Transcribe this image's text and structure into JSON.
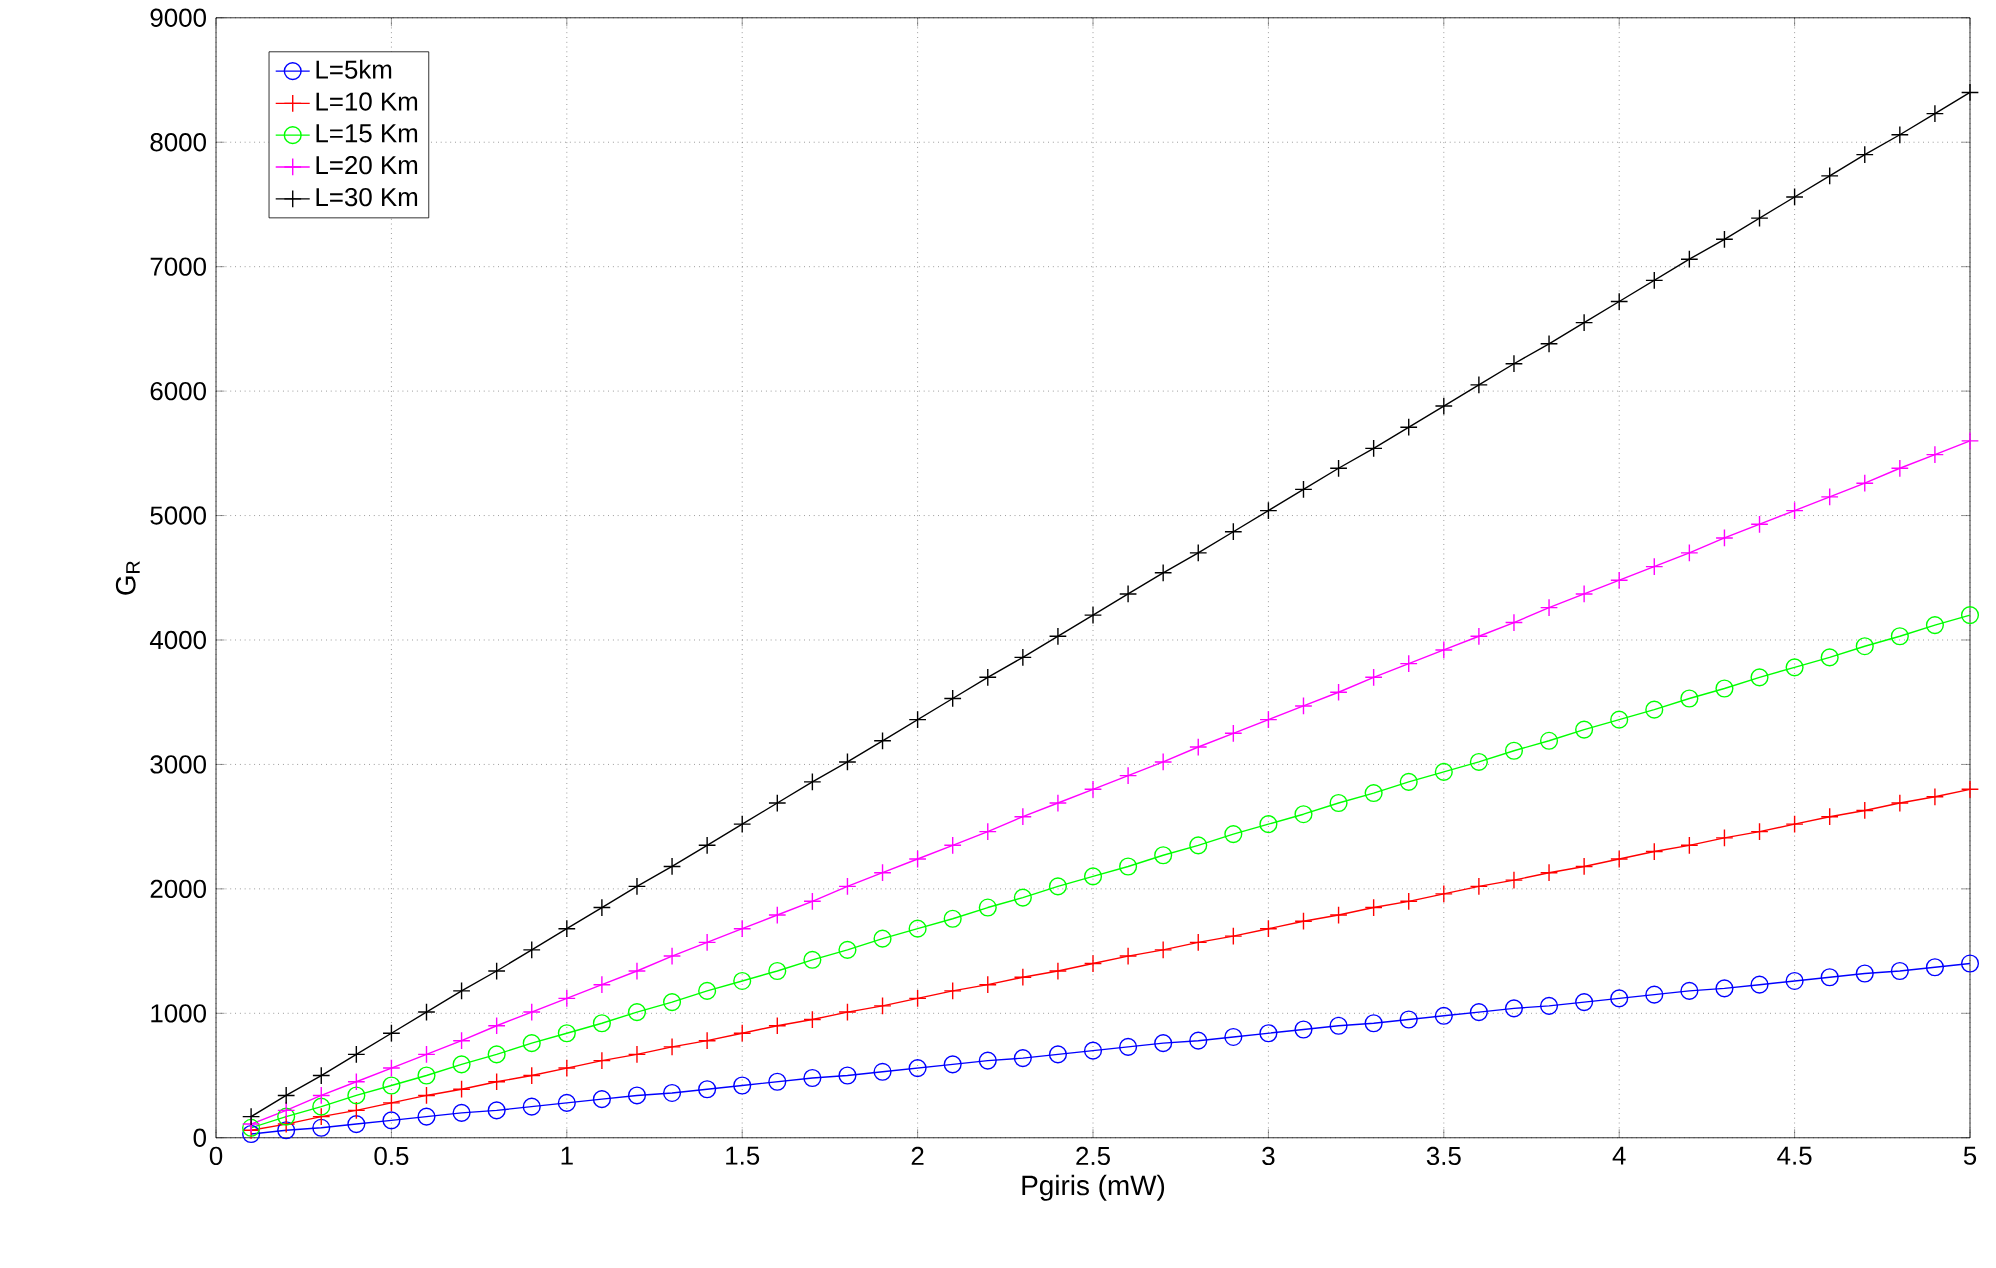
{
  "chart_data": {
    "type": "line",
    "xlabel": "Pgiris (mW)",
    "ylabel": "G$_{R}$",
    "x": [
      0.1,
      0.2,
      0.3,
      0.4,
      0.5,
      0.6,
      0.7,
      0.8,
      0.9,
      1.0,
      1.1,
      1.2,
      1.3,
      1.4,
      1.5,
      1.6,
      1.7,
      1.8,
      1.9,
      2.0,
      2.1,
      2.2,
      2.3,
      2.4,
      2.5,
      2.6,
      2.7,
      2.8,
      2.9,
      3.0,
      3.1,
      3.2,
      3.3,
      3.4,
      3.5,
      3.6,
      3.7,
      3.8,
      3.9,
      4.0,
      4.1,
      4.2,
      4.3,
      4.4,
      4.5,
      4.6,
      4.7,
      4.8,
      4.9,
      5.0
    ],
    "series": [
      {
        "name": "L=5km",
        "color": "#0000ff",
        "marker": "circle",
        "values": [
          30,
          60,
          80,
          110,
          140,
          170,
          200,
          220,
          250,
          280,
          310,
          340,
          360,
          390,
          420,
          450,
          480,
          500,
          530,
          560,
          590,
          620,
          640,
          670,
          700,
          730,
          760,
          780,
          810,
          840,
          870,
          900,
          920,
          950,
          980,
          1010,
          1040,
          1060,
          1090,
          1120,
          1150,
          1180,
          1200,
          1230,
          1260,
          1290,
          1320,
          1340,
          1370,
          1400
        ]
      },
      {
        "name": "L=10 Km",
        "color": "#ff0000",
        "marker": "cross",
        "values": [
          60,
          110,
          170,
          220,
          280,
          340,
          390,
          450,
          500,
          560,
          620,
          670,
          730,
          780,
          840,
          900,
          950,
          1010,
          1060,
          1120,
          1180,
          1230,
          1290,
          1340,
          1400,
          1460,
          1510,
          1570,
          1620,
          1680,
          1740,
          1790,
          1850,
          1900,
          1960,
          2020,
          2070,
          2130,
          2180,
          2240,
          2300,
          2350,
          2410,
          2460,
          2520,
          2580,
          2630,
          2690,
          2740,
          2800
        ]
      },
      {
        "name": "L=15 Km",
        "color": "#00ff00",
        "marker": "circle",
        "values": [
          80,
          170,
          250,
          340,
          420,
          500,
          590,
          670,
          760,
          840,
          920,
          1010,
          1090,
          1180,
          1260,
          1340,
          1430,
          1510,
          1600,
          1680,
          1760,
          1850,
          1930,
          2020,
          2100,
          2180,
          2270,
          2350,
          2440,
          2520,
          2600,
          2690,
          2770,
          2860,
          2940,
          3020,
          3110,
          3190,
          3280,
          3360,
          3440,
          3530,
          3610,
          3700,
          3780,
          3860,
          3950,
          4030,
          4120,
          4200
        ]
      },
      {
        "name": "L=20 Km",
        "color": "#ff00ff",
        "marker": "cross",
        "values": [
          110,
          220,
          340,
          450,
          560,
          670,
          780,
          900,
          1010,
          1120,
          1230,
          1340,
          1460,
          1570,
          1680,
          1790,
          1900,
          2020,
          2130,
          2240,
          2350,
          2460,
          2580,
          2690,
          2800,
          2910,
          3020,
          3140,
          3250,
          3360,
          3470,
          3580,
          3700,
          3810,
          3920,
          4030,
          4140,
          4260,
          4370,
          4480,
          4590,
          4700,
          4820,
          4930,
          5040,
          5150,
          5260,
          5380,
          5490,
          5600
        ]
      },
      {
        "name": "L=30 Km",
        "color": "#000000",
        "marker": "cross",
        "values": [
          170,
          340,
          500,
          670,
          840,
          1010,
          1180,
          1340,
          1510,
          1680,
          1850,
          2020,
          2180,
          2350,
          2520,
          2690,
          2860,
          3020,
          3190,
          3360,
          3530,
          3700,
          3860,
          4030,
          4200,
          4370,
          4540,
          4700,
          4870,
          5040,
          5210,
          5380,
          5540,
          5710,
          5880,
          6050,
          6220,
          6380,
          6550,
          6720,
          6890,
          7060,
          7220,
          7390,
          7560,
          7730,
          7900,
          8060,
          8230,
          8400
        ]
      }
    ],
    "xlim": [
      0,
      5
    ],
    "ylim": [
      0,
      9000
    ],
    "xticks": [
      0,
      0.5,
      1,
      1.5,
      2,
      2.5,
      3,
      3.5,
      4,
      4.5,
      5
    ],
    "yticks": [
      0,
      1000,
      2000,
      3000,
      4000,
      5000,
      6000,
      7000,
      8000,
      9000
    ],
    "grid": true,
    "legend": "top left"
  }
}
